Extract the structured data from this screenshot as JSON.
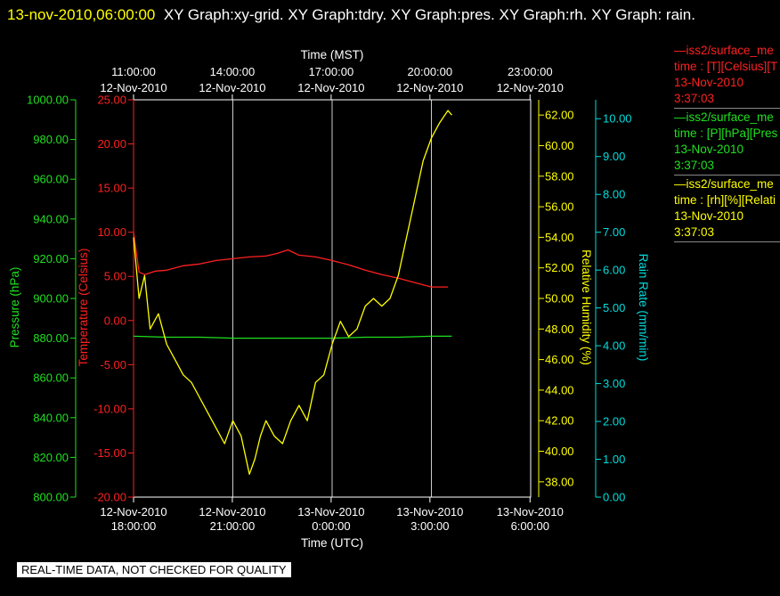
{
  "header": {
    "timestamp": "13-nov-2010,06:00:00",
    "graph_titles": "XY Graph:xy-grid.  XY Graph:tdry.  XY Graph:pres.  XY Graph:rh.  XY Graph: rain."
  },
  "notice": "REAL-TIME DATA, NOT CHECKED FOR QUALITY",
  "legend": [
    {
      "line1": "—iss2/surface_me",
      "line2": "time : [T][Celsius][T",
      "line3": "13-Nov-2010",
      "line4": "3:37:03",
      "color": "#ff2020"
    },
    {
      "line1": "—iss2/surface_me",
      "line2": "time : [P][hPa][Pres",
      "line3": "13-Nov-2010",
      "line4": "3:37:03",
      "color": "#20e020"
    },
    {
      "line1": "—iss2/surface_me",
      "line2": "time : [rh][%][Relati",
      "line3": "13-Nov-2010",
      "line4": "3:37:03",
      "color": "#ffff00"
    }
  ],
  "colors": {
    "temperature": "#ff2020",
    "pressure": "#20e020",
    "humidity": "#ffff00",
    "rain": "#00dddd",
    "axes": "#ffffff",
    "grid": "#ffffff",
    "background": "#000000"
  },
  "chart_data": {
    "type": "line",
    "top_axis": {
      "title": "Time (MST)",
      "ticks": [
        {
          "time": "11:00:00",
          "date": "12-Nov-2010"
        },
        {
          "time": "14:00:00",
          "date": "12-Nov-2010"
        },
        {
          "time": "17:00:00",
          "date": "12-Nov-2010"
        },
        {
          "time": "20:00:00",
          "date": "12-Nov-2010"
        },
        {
          "time": "23:00:00",
          "date": "12-Nov-2010"
        }
      ]
    },
    "bottom_axis": {
      "title": "Time (UTC)",
      "ticks": [
        {
          "date": "12-Nov-2010",
          "time": "18:00:00"
        },
        {
          "date": "12-Nov-2010",
          "time": "21:00:00"
        },
        {
          "date": "13-Nov-2010",
          "time": "0:00:00"
        },
        {
          "date": "13-Nov-2010",
          "time": "3:00:00"
        },
        {
          "date": "13-Nov-2010",
          "time": "6:00:00"
        }
      ]
    },
    "x_range": [
      "12-Nov-2010 18:00:00 UTC",
      "13-Nov-2010 06:00:00 UTC"
    ],
    "vertical_grid_at": [
      "12-Nov-2010 21:00:00 UTC",
      "13-Nov-2010 00:00:00 UTC",
      "13-Nov-2010 03:00:00 UTC"
    ],
    "axes": {
      "pressure": {
        "label": "Pressure (hPa)",
        "ylim": [
          800,
          1000
        ],
        "ticks": [
          "800.00",
          "820.00",
          "840.00",
          "860.00",
          "880.00",
          "900.00",
          "920.00",
          "940.00",
          "960.00",
          "980.00",
          "1000.00"
        ]
      },
      "temperature": {
        "label": "Temperature (Celsius)",
        "ylim": [
          -20,
          25
        ],
        "ticks": [
          "-20.00",
          "-15.00",
          "-10.00",
          "-5.00",
          "0.00",
          "5.00",
          "10.00",
          "15.00",
          "20.00",
          "25.00"
        ]
      },
      "humidity": {
        "label": "Relative Humidity (%)",
        "ylim": [
          37,
          63
        ],
        "ticks": [
          "38.00",
          "40.00",
          "42.00",
          "44.00",
          "46.00",
          "48.00",
          "50.00",
          "52.00",
          "54.00",
          "56.00",
          "58.00",
          "60.00",
          "62.00"
        ]
      },
      "rain": {
        "label": "Rain Rate (mm/min)",
        "ylim": [
          0,
          10.5
        ],
        "ticks": [
          "0.00",
          "1.00",
          "2.00",
          "3.00",
          "4.00",
          "5.00",
          "6.00",
          "7.00",
          "8.00",
          "9.00",
          "10.00"
        ]
      }
    },
    "series": [
      {
        "name": "iss2/surface_met time : [T][Celsius]",
        "axis": "temperature",
        "points": [
          [
            "12-Nov-2010 18:00",
            10.0
          ],
          [
            "12-Nov-2010 18:10",
            5.5
          ],
          [
            "12-Nov-2010 18:20",
            5.2
          ],
          [
            "12-Nov-2010 18:40",
            5.6
          ],
          [
            "12-Nov-2010 19:00",
            5.7
          ],
          [
            "12-Nov-2010 19:30",
            6.2
          ],
          [
            "12-Nov-2010 20:00",
            6.4
          ],
          [
            "12-Nov-2010 20:30",
            6.8
          ],
          [
            "12-Nov-2010 21:00",
            7.0
          ],
          [
            "12-Nov-2010 21:30",
            7.2
          ],
          [
            "12-Nov-2010 22:00",
            7.3
          ],
          [
            "12-Nov-2010 22:20",
            7.6
          ],
          [
            "12-Nov-2010 22:40",
            8.0
          ],
          [
            "12-Nov-2010 23:00",
            7.4
          ],
          [
            "12-Nov-2010 23:30",
            7.2
          ],
          [
            "13-Nov-2010 00:00",
            6.8
          ],
          [
            "13-Nov-2010 00:30",
            6.3
          ],
          [
            "13-Nov-2010 01:00",
            5.7
          ],
          [
            "13-Nov-2010 01:30",
            5.2
          ],
          [
            "13-Nov-2010 02:00",
            4.8
          ],
          [
            "13-Nov-2010 02:30",
            4.3
          ],
          [
            "13-Nov-2010 03:00",
            3.8
          ],
          [
            "13-Nov-2010 03:30",
            3.8
          ]
        ]
      },
      {
        "name": "iss2/surface_met time : [P][hPa]",
        "axis": "pressure",
        "points": [
          [
            "12-Nov-2010 18:00",
            881
          ],
          [
            "12-Nov-2010 19:00",
            880.5
          ],
          [
            "12-Nov-2010 20:00",
            880.5
          ],
          [
            "12-Nov-2010 21:00",
            880
          ],
          [
            "12-Nov-2010 22:00",
            880
          ],
          [
            "12-Nov-2010 23:00",
            880
          ],
          [
            "13-Nov-2010 00:00",
            880
          ],
          [
            "13-Nov-2010 01:00",
            880.5
          ],
          [
            "13-Nov-2010 02:00",
            880.5
          ],
          [
            "13-Nov-2010 03:00",
            881
          ],
          [
            "13-Nov-2010 03:37",
            881
          ]
        ]
      },
      {
        "name": "iss2/surface_met time : [rh][%]",
        "axis": "humidity",
        "points": [
          [
            "12-Nov-2010 18:00",
            54.0
          ],
          [
            "12-Nov-2010 18:10",
            50.0
          ],
          [
            "12-Nov-2010 18:20",
            51.5
          ],
          [
            "12-Nov-2010 18:30",
            48.0
          ],
          [
            "12-Nov-2010 18:45",
            49.0
          ],
          [
            "12-Nov-2010 19:00",
            47.0
          ],
          [
            "12-Nov-2010 19:15",
            46.0
          ],
          [
            "12-Nov-2010 19:30",
            45.0
          ],
          [
            "12-Nov-2010 19:45",
            44.5
          ],
          [
            "12-Nov-2010 20:00",
            43.5
          ],
          [
            "12-Nov-2010 20:15",
            42.5
          ],
          [
            "12-Nov-2010 20:30",
            41.5
          ],
          [
            "12-Nov-2010 20:45",
            40.5
          ],
          [
            "12-Nov-2010 21:00",
            42.0
          ],
          [
            "12-Nov-2010 21:15",
            41.0
          ],
          [
            "12-Nov-2010 21:30",
            38.5
          ],
          [
            "12-Nov-2010 21:40",
            39.5
          ],
          [
            "12-Nov-2010 21:50",
            41.0
          ],
          [
            "12-Nov-2010 22:00",
            42.0
          ],
          [
            "12-Nov-2010 22:15",
            41.0
          ],
          [
            "12-Nov-2010 22:30",
            40.5
          ],
          [
            "12-Nov-2010 22:45",
            42.0
          ],
          [
            "12-Nov-2010 23:00",
            43.0
          ],
          [
            "12-Nov-2010 23:15",
            42.0
          ],
          [
            "12-Nov-2010 23:30",
            44.5
          ],
          [
            "12-Nov-2010 23:45",
            45.0
          ],
          [
            "13-Nov-2010 00:00",
            47.0
          ],
          [
            "13-Nov-2010 00:15",
            48.5
          ],
          [
            "13-Nov-2010 00:30",
            47.5
          ],
          [
            "13-Nov-2010 00:45",
            48.0
          ],
          [
            "13-Nov-2010 01:00",
            49.5
          ],
          [
            "13-Nov-2010 01:15",
            50.0
          ],
          [
            "13-Nov-2010 01:30",
            49.5
          ],
          [
            "13-Nov-2010 01:45",
            50.0
          ],
          [
            "13-Nov-2010 02:00",
            51.5
          ],
          [
            "13-Nov-2010 02:15",
            54.0
          ],
          [
            "13-Nov-2010 02:30",
            56.5
          ],
          [
            "13-Nov-2010 02:45",
            59.0
          ],
          [
            "13-Nov-2010 03:00",
            60.5
          ],
          [
            "13-Nov-2010 03:15",
            61.5
          ],
          [
            "13-Nov-2010 03:30",
            62.3
          ],
          [
            "13-Nov-2010 03:37",
            62.0
          ]
        ]
      }
    ],
    "grid": "vertical lines at middle ticks"
  }
}
